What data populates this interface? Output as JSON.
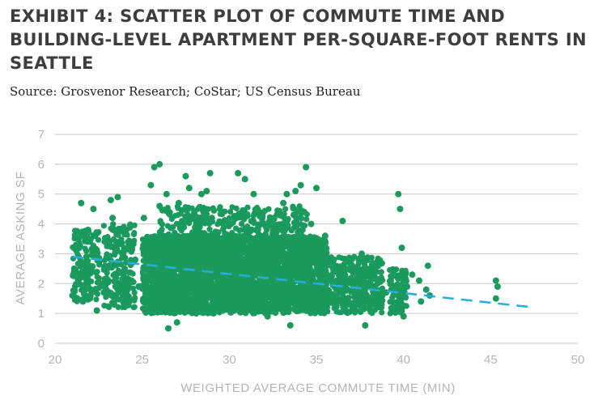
{
  "page": {
    "title": "EXHIBIT 4: SCATTER PLOT OF COMMUTE TIME AND BUILDING-LEVEL APARTMENT PER-SQUARE-FOOT RENTS IN SEATTLE",
    "source": "Source: Grosvenor Research; CoStar; US Census Bureau"
  },
  "chart_data": {
    "type": "scatter",
    "xlabel": "WEIGHTED AVERAGE COMMUTE TIME (MIN)",
    "ylabel": "AVERAGE ASKING SF",
    "xlim": [
      20,
      50
    ],
    "ylim": [
      0,
      7
    ],
    "xticks": [
      20,
      25,
      30,
      35,
      40,
      45,
      50
    ],
    "yticks": [
      0,
      1,
      2,
      3,
      4,
      5,
      6,
      7
    ],
    "grid": "horizontal",
    "colors": {
      "points": "#1a9a5c",
      "trend": "#27aee0"
    },
    "trendline": {
      "x": [
        21,
        47.5
      ],
      "y": [
        2.9,
        1.2
      ],
      "style": "dashed"
    },
    "series": [
      {
        "values": [
          [
            21.0,
            1.6
          ],
          [
            21.1,
            2.5
          ],
          [
            21.2,
            3.2
          ],
          [
            21.3,
            2.0
          ],
          [
            21.5,
            4.7
          ],
          [
            21.6,
            1.4
          ],
          [
            21.8,
            2.9
          ],
          [
            21.9,
            3.8
          ],
          [
            22.0,
            1.5
          ],
          [
            22.1,
            2.4
          ],
          [
            22.2,
            4.5
          ],
          [
            22.3,
            3.6
          ],
          [
            22.4,
            1.1
          ],
          [
            22.5,
            2.8
          ],
          [
            22.6,
            2.0
          ],
          [
            22.8,
            1.7
          ],
          [
            23.0,
            3.3
          ],
          [
            23.1,
            2.6
          ],
          [
            23.2,
            4.8
          ],
          [
            23.3,
            4.2
          ],
          [
            23.4,
            1.3
          ],
          [
            23.5,
            2.2
          ],
          [
            23.6,
            4.9
          ],
          [
            23.7,
            3.4
          ],
          [
            23.9,
            1.8
          ],
          [
            24.0,
            2.5
          ],
          [
            24.2,
            3.4
          ],
          [
            24.4,
            2.1
          ],
          [
            24.6,
            2.8
          ],
          [
            24.8,
            1.9
          ],
          [
            25.1,
            4.2
          ],
          [
            25.2,
            3.4
          ],
          [
            25.3,
            1.3
          ],
          [
            25.5,
            5.3
          ],
          [
            25.7,
            5.9
          ],
          [
            25.8,
            1.5
          ],
          [
            25.9,
            2.9
          ],
          [
            26.0,
            6.0
          ],
          [
            26.0,
            4.6
          ],
          [
            26.1,
            3.5
          ],
          [
            26.2,
            1.9
          ],
          [
            26.3,
            2.6
          ],
          [
            26.4,
            5.0
          ],
          [
            26.5,
            0.5
          ],
          [
            26.5,
            4.4
          ],
          [
            26.6,
            3.2
          ],
          [
            26.7,
            1.7
          ],
          [
            26.9,
            2.8
          ],
          [
            27.0,
            0.7
          ],
          [
            27.1,
            4.7
          ],
          [
            27.2,
            3.9
          ],
          [
            27.3,
            2.1
          ],
          [
            27.4,
            1.2
          ],
          [
            27.5,
            5.6
          ],
          [
            27.6,
            2.4
          ],
          [
            27.7,
            5.2
          ],
          [
            27.9,
            3.5
          ],
          [
            28.0,
            4.4
          ],
          [
            28.1,
            1.0
          ],
          [
            28.2,
            2.7
          ],
          [
            28.3,
            3.9
          ],
          [
            28.4,
            5.0
          ],
          [
            28.5,
            1.6
          ],
          [
            28.7,
            5.1
          ],
          [
            28.8,
            2.3
          ],
          [
            28.9,
            5.7
          ],
          [
            29.0,
            4.2
          ],
          [
            29.1,
            1.0
          ],
          [
            29.3,
            3.3
          ],
          [
            29.5,
            2.4
          ],
          [
            29.6,
            4.4
          ],
          [
            29.7,
            1.5
          ],
          [
            29.9,
            3.6
          ],
          [
            30.0,
            2.2
          ],
          [
            30.1,
            4.0
          ],
          [
            30.2,
            1.1
          ],
          [
            30.3,
            3.2
          ],
          [
            30.5,
            5.7
          ],
          [
            30.6,
            2.8
          ],
          [
            30.8,
            4.2
          ],
          [
            30.9,
            5.5
          ],
          [
            31.0,
            1.5
          ],
          [
            31.2,
            2.5
          ],
          [
            31.3,
            3.8
          ],
          [
            31.4,
            5.0
          ],
          [
            31.5,
            2.0
          ],
          [
            31.7,
            1.2
          ],
          [
            31.8,
            3.3
          ],
          [
            32.0,
            2.9
          ],
          [
            32.1,
            4.0
          ],
          [
            32.2,
            0.9
          ],
          [
            32.3,
            2.3
          ],
          [
            32.5,
            3.7
          ],
          [
            32.6,
            1.5
          ],
          [
            32.8,
            2.7
          ],
          [
            33.0,
            3.5
          ],
          [
            33.1,
            4.7
          ],
          [
            33.2,
            1.8
          ],
          [
            33.3,
            5.0
          ],
          [
            33.4,
            2.2
          ],
          [
            33.5,
            0.6
          ],
          [
            33.6,
            3.2
          ],
          [
            33.7,
            4.3
          ],
          [
            33.8,
            5.1
          ],
          [
            33.9,
            1.2
          ],
          [
            34.0,
            2.6
          ],
          [
            34.1,
            5.3
          ],
          [
            34.2,
            3.8
          ],
          [
            34.3,
            4.4
          ],
          [
            34.4,
            5.9
          ],
          [
            34.5,
            1.9
          ],
          [
            34.6,
            2.2
          ],
          [
            34.7,
            4.0
          ],
          [
            34.8,
            1.1
          ],
          [
            34.9,
            2.9
          ],
          [
            35.0,
            5.2
          ],
          [
            35.1,
            3.3
          ],
          [
            35.2,
            1.6
          ],
          [
            35.4,
            2.5
          ],
          [
            35.5,
            3.6
          ],
          [
            35.6,
            1.2
          ],
          [
            35.8,
            2.1
          ],
          [
            36.0,
            2.8
          ],
          [
            36.1,
            1.5
          ],
          [
            36.3,
            2.3
          ],
          [
            36.5,
            4.1
          ],
          [
            36.6,
            1.9
          ],
          [
            36.8,
            1.3
          ],
          [
            37.0,
            2.6
          ],
          [
            37.2,
            1.7
          ],
          [
            37.4,
            2.2
          ],
          [
            37.6,
            3.0
          ],
          [
            37.8,
            0.6
          ],
          [
            37.9,
            1.9
          ],
          [
            38.1,
            1.1
          ],
          [
            38.3,
            2.5
          ],
          [
            38.5,
            1.5
          ],
          [
            38.7,
            2.1
          ],
          [
            39.0,
            1.7
          ],
          [
            39.4,
            2.3
          ],
          [
            39.6,
            1.3
          ],
          [
            39.7,
            5.0
          ],
          [
            39.8,
            4.5
          ],
          [
            39.9,
            3.2
          ],
          [
            39.9,
            1.7
          ],
          [
            40.0,
            0.9
          ],
          [
            40.1,
            2.3
          ],
          [
            40.2,
            1.9
          ],
          [
            40.5,
            2.3
          ],
          [
            40.9,
            2.1
          ],
          [
            41.0,
            1.4
          ],
          [
            41.3,
            1.8
          ],
          [
            41.4,
            2.6
          ],
          [
            41.5,
            1.6
          ],
          [
            45.3,
            2.1
          ],
          [
            45.3,
            1.5
          ],
          [
            45.4,
            1.9
          ]
        ]
      }
    ]
  }
}
